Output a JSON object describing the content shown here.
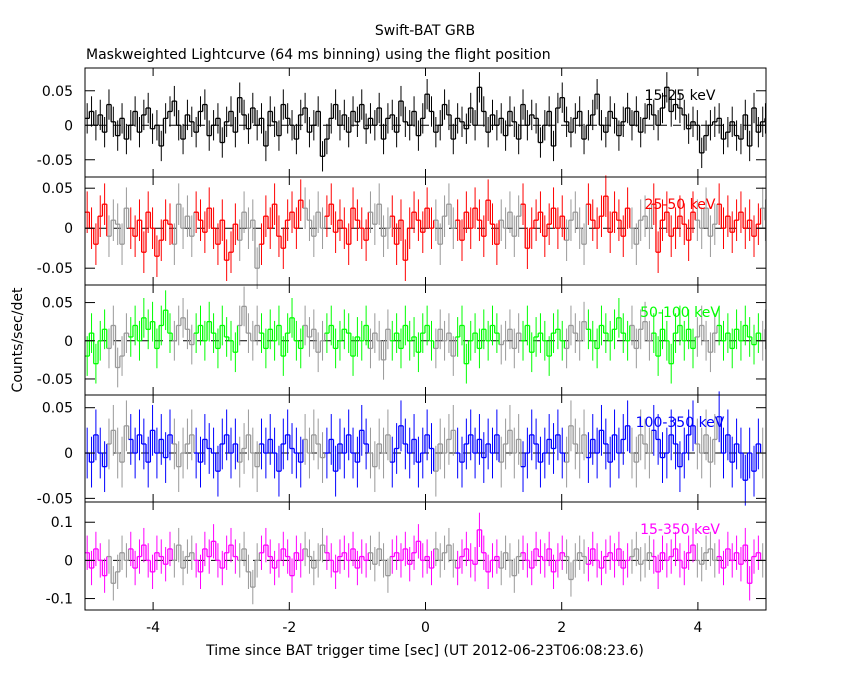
{
  "chart_data": {
    "type": "line",
    "title": "Swift-BAT GRB",
    "subtitle": "Maskweighted Lightcurve (64 ms binning) using the flight position",
    "xlabel": "Time since BAT trigger time [sec] (UT 2012-06-23T06:08:23.6)",
    "ylabel": "Counts/sec/det",
    "xlim": [
      -5,
      5
    ],
    "bin_width": 0.064,
    "x_ticks": [
      "-4",
      "-2",
      "0",
      "2",
      "4"
    ],
    "x_tick_values": [
      -4,
      -2,
      0,
      2,
      4
    ],
    "panels": [
      {
        "name": "15-25 keV",
        "color": "#000000",
        "ylim": [
          -0.075,
          0.083
        ],
        "yticks": [
          0.05,
          0,
          -0.05
        ],
        "ytick_labels": [
          "0.05",
          "0",
          "-0.05"
        ],
        "err": 0.022,
        "values": [
          0.01,
          0.02,
          0.0,
          0.015,
          -0.01,
          0.03,
          0.005,
          -0.015,
          0.01,
          -0.02,
          0.0,
          0.02,
          -0.01,
          0.015,
          0.025,
          -0.005,
          0.0,
          -0.03,
          0.01,
          0.02,
          0.035,
          0.0,
          -0.02,
          0.015,
          0.005,
          -0.01,
          0.02,
          0.03,
          -0.015,
          0.0,
          0.01,
          -0.025,
          0.005,
          0.02,
          -0.01,
          0.04,
          0.015,
          -0.005,
          0.025,
          0.0,
          0.01,
          -0.03,
          0.02,
          0.005,
          -0.015,
          0.03,
          0.01,
          0.0,
          -0.02,
          0.015,
          0.025,
          -0.01,
          0.0,
          0.02,
          -0.045,
          -0.02,
          0.01,
          0.03,
          0.0,
          0.015,
          -0.01,
          0.02,
          0.005,
          0.03,
          -0.005,
          0.01,
          0.0,
          0.025,
          -0.02,
          0.01,
          0.015,
          -0.01,
          0.035,
          0.005,
          0.0,
          0.02,
          -0.015,
          0.01,
          0.045,
          0.02,
          -0.01,
          0.0,
          0.03,
          0.015,
          -0.02,
          0.01,
          0.005,
          -0.005,
          0.025,
          0.0,
          0.055,
          0.02,
          -0.01,
          0.015,
          0.0,
          0.01,
          -0.015,
          0.02,
          0.005,
          -0.02,
          0.03,
          0.0,
          0.015,
          0.01,
          -0.025,
          0.0,
          0.02,
          -0.03,
          0.025,
          0.04,
          0.005,
          -0.01,
          0.01,
          0.02,
          -0.02,
          0.0,
          0.015,
          0.045,
          0.0,
          -0.01,
          0.02,
          0.01,
          -0.015,
          0.005,
          0.025,
          0.0,
          0.02,
          -0.01,
          0.01,
          0.03,
          0.015,
          0.0,
          0.025,
          0.055,
          0.02,
          0.03,
          0.025,
          0.015,
          -0.005,
          0.005,
          0.0,
          -0.04,
          -0.015,
          0.0,
          0.005,
          0.01,
          -0.02,
          -0.01,
          0.005,
          -0.015,
          -0.02,
          0.015,
          -0.03,
          0.025,
          -0.01,
          0.005,
          0.01,
          0.0
        ]
      },
      {
        "name": "25-50 keV",
        "color": "#ff0000",
        "ylim": [
          -0.071,
          0.064
        ],
        "yticks": [
          0.05,
          0,
          -0.05
        ],
        "ytick_labels": [
          "0.05",
          "0",
          "-0.05"
        ],
        "err": 0.026,
        "values": [
          0.02,
          0.0,
          -0.02,
          0.015,
          0.03,
          -0.01,
          0.01,
          0.005,
          -0.02,
          0.025,
          0.0,
          -0.01,
          0.01,
          -0.03,
          0.02,
          0.0,
          -0.035,
          -0.015,
          0.01,
          0.005,
          -0.02,
          0.03,
          0.0,
          0.015,
          -0.01,
          0.02,
          0.01,
          -0.005,
          0.025,
          0.0,
          -0.02,
          0.01,
          -0.04,
          -0.03,
          0.005,
          -0.015,
          0.02,
          0.0,
          0.01,
          -0.05,
          -0.02,
          0.015,
          0.0,
          0.03,
          -0.01,
          -0.025,
          0.01,
          0.02,
          0.0,
          0.035,
          0.025,
          0.01,
          -0.01,
          0.02,
          0.0,
          0.015,
          0.03,
          -0.005,
          0.01,
          0.0,
          -0.02,
          0.025,
          0.01,
          0.0,
          -0.015,
          0.02,
          0.005,
          0.03,
          -0.01,
          0.0,
          0.015,
          -0.02,
          0.01,
          -0.04,
          0.0,
          0.02,
          0.01,
          -0.005,
          0.025,
          0.0,
          0.01,
          -0.02,
          0.015,
          0.03,
          0.0,
          0.01,
          -0.015,
          0.02,
          0.0,
          0.025,
          0.01,
          -0.01,
          0.035,
          0.005,
          -0.02,
          0.01,
          0.0,
          0.02,
          -0.01,
          0.015,
          0.03,
          -0.025,
          0.0,
          0.01,
          0.02,
          -0.01,
          0.005,
          0.025,
          0.0,
          0.015,
          -0.015,
          0.01,
          0.02,
          0.0,
          -0.02,
          0.03,
          0.01,
          0.0,
          0.015,
          0.04,
          -0.005,
          0.02,
          0.01,
          -0.01,
          0.025,
          0.0,
          -0.02,
          0.01,
          0.015,
          0.0,
          0.03,
          -0.03,
          0.01,
          0.02,
          -0.01,
          0.0,
          0.015,
          0.005,
          -0.015,
          0.02,
          0.01,
          0.0,
          0.025,
          -0.01,
          0.005,
          0.03,
          0.0,
          0.015,
          -0.005,
          0.01,
          0.02,
          0.0,
          0.01,
          -0.01,
          0.005,
          0.025,
          0.01
        ]
      },
      {
        "name": "50-100 keV",
        "color": "#00ff00",
        "ylim": [
          -0.071,
          0.073
        ],
        "yticks": [
          0.05,
          0,
          -0.05
        ],
        "ytick_labels": [
          "0.05",
          "0",
          "-0.05"
        ],
        "err": 0.026,
        "values": [
          -0.02,
          0.01,
          -0.03,
          0.0,
          0.015,
          -0.01,
          0.02,
          -0.035,
          -0.02,
          0.01,
          0.005,
          0.02,
          0.0,
          0.03,
          0.015,
          0.025,
          -0.01,
          0.02,
          0.04,
          0.01,
          0.0,
          0.02,
          0.03,
          0.015,
          -0.005,
          0.01,
          0.02,
          0.0,
          0.025,
          0.01,
          -0.01,
          0.02,
          0.005,
          0.0,
          -0.015,
          0.02,
          0.045,
          0.01,
          0.0,
          0.02,
          0.01,
          -0.01,
          0.015,
          0.0,
          0.02,
          -0.02,
          0.01,
          0.03,
          0.0,
          -0.01,
          0.02,
          0.005,
          0.015,
          -0.015,
          0.0,
          0.01,
          0.02,
          -0.01,
          0.0,
          0.015,
          0.01,
          -0.02,
          0.005,
          0.0,
          0.02,
          -0.01,
          0.01,
          0.0,
          -0.025,
          0.015,
          0.0,
          0.01,
          -0.01,
          0.02,
          0.0,
          0.005,
          -0.015,
          0.01,
          0.02,
          0.0,
          -0.01,
          0.015,
          0.0,
          0.01,
          -0.02,
          0.005,
          0.02,
          -0.03,
          0.0,
          0.01,
          -0.01,
          0.015,
          0.0,
          0.02,
          0.01,
          -0.005,
          0.0,
          0.015,
          -0.01,
          0.01,
          0.0,
          0.02,
          -0.015,
          0.005,
          0.01,
          0.0,
          -0.02,
          0.01,
          0.015,
          0.0,
          -0.01,
          0.02,
          0.01,
          0.0,
          0.025,
          0.015,
          0.0,
          -0.01,
          0.02,
          0.01,
          0.0,
          0.015,
          0.03,
          0.01,
          0.0,
          0.02,
          -0.01,
          0.015,
          0.025,
          0.0,
          0.01,
          -0.02,
          0.015,
          0.0,
          -0.03,
          0.01,
          0.02,
          0.0,
          0.015,
          -0.01,
          0.005,
          0.02,
          0.0,
          -0.015,
          0.01,
          0.02,
          0.0,
          0.01,
          -0.01,
          0.015,
          0.0,
          0.02,
          0.005,
          -0.005,
          0.01,
          0.0,
          0.015
        ]
      },
      {
        "name": "100-350 keV",
        "color": "#0000ff",
        "ylim": [
          -0.054,
          0.064
        ],
        "yticks": [
          0.05,
          0,
          -0.05
        ],
        "ytick_labels": [
          "0.05",
          "0",
          "-0.05"
        ],
        "err": 0.028,
        "values": [
          0.0,
          -0.01,
          0.02,
          0.0,
          -0.015,
          0.01,
          0.025,
          0.0,
          -0.01,
          0.03,
          0.015,
          0.0,
          0.02,
          0.01,
          -0.01,
          0.025,
          0.0,
          0.015,
          -0.005,
          0.02,
          0.01,
          -0.015,
          0.0,
          0.01,
          0.02,
          0.0,
          -0.01,
          0.015,
          0.005,
          0.0,
          -0.02,
          0.01,
          0.02,
          0.0,
          0.01,
          -0.01,
          0.005,
          0.02,
          0.0,
          -0.015,
          0.01,
          0.0,
          0.015,
          0.0,
          -0.02,
          0.01,
          0.02,
          0.005,
          0.0,
          -0.01,
          0.015,
          0.0,
          0.02,
          0.01,
          -0.005,
          0.0,
          0.015,
          -0.02,
          0.01,
          0.0,
          0.02,
          0.0,
          -0.01,
          0.025,
          0.01,
          0.0,
          -0.015,
          0.01,
          0.0,
          0.02,
          -0.01,
          0.005,
          0.03,
          0.01,
          0.0,
          0.015,
          -0.01,
          0.0,
          0.02,
          0.005,
          -0.02,
          0.01,
          0.0,
          0.015,
          0.025,
          0.0,
          -0.01,
          0.01,
          0.02,
          0.0,
          0.015,
          -0.005,
          0.01,
          0.0,
          0.02,
          -0.01,
          0.01,
          0.025,
          0.0,
          0.015,
          -0.015,
          0.0,
          0.02,
          0.01,
          -0.01,
          0.0,
          0.015,
          0.005,
          0.02,
          0.0,
          -0.01,
          0.03,
          0.01,
          0.0,
          0.02,
          -0.005,
          0.015,
          0.0,
          0.025,
          0.01,
          -0.01,
          0.02,
          0.0,
          0.015,
          0.03,
          0.0,
          -0.01,
          0.02,
          0.01,
          0.0,
          0.025,
          0.015,
          -0.005,
          0.0,
          0.02,
          0.01,
          -0.015,
          0.0,
          0.02,
          0.03,
          0.01,
          0.0,
          0.02,
          -0.01,
          0.015,
          0.04,
          0.0,
          0.02,
          -0.01,
          0.01,
          0.0,
          -0.03,
          0.0,
          -0.02,
          0.01,
          0.0
        ]
      },
      {
        "name": "15-350 keV",
        "color": "#ff00ff",
        "ylim": [
          -0.13,
          0.153
        ],
        "yticks": [
          0.1,
          0,
          -0.1
        ],
        "ytick_labels": [
          "0.1",
          "0",
          "-0.1"
        ],
        "err": 0.045,
        "values": [
          0.02,
          -0.02,
          0.03,
          0.0,
          -0.04,
          0.01,
          -0.06,
          -0.03,
          0.02,
          0.0,
          0.03,
          -0.02,
          0.01,
          0.04,
          0.0,
          -0.03,
          0.02,
          0.01,
          -0.01,
          0.03,
          0.0,
          0.04,
          -0.02,
          0.01,
          0.02,
          0.0,
          -0.03,
          0.03,
          0.01,
          0.05,
          0.0,
          -0.02,
          0.02,
          0.04,
          0.01,
          0.0,
          0.03,
          -0.03,
          -0.07,
          0.0,
          0.02,
          0.04,
          0.01,
          -0.02,
          0.0,
          0.03,
          0.01,
          -0.04,
          0.02,
          0.0,
          0.03,
          0.01,
          -0.02,
          0.0,
          0.04,
          0.02,
          0.0,
          -0.03,
          0.01,
          0.02,
          0.0,
          0.03,
          -0.02,
          0.01,
          0.0,
          0.02,
          -0.01,
          0.03,
          0.0,
          -0.04,
          0.01,
          0.02,
          0.0,
          0.03,
          -0.01,
          0.02,
          0.05,
          0.0,
          0.01,
          -0.02,
          0.03,
          0.0,
          0.02,
          0.04,
          0.0,
          -0.02,
          0.01,
          0.03,
          0.0,
          -0.01,
          0.08,
          0.02,
          -0.03,
          0.0,
          0.01,
          -0.02,
          0.02,
          0.0,
          -0.04,
          0.01,
          0.02,
          0.0,
          -0.02,
          0.03,
          0.01,
          0.0,
          0.03,
          -0.03,
          0.0,
          0.02,
          0.01,
          -0.05,
          0.0,
          0.02,
          0.01,
          -0.01,
          0.03,
          0.0,
          -0.02,
          0.01,
          0.02,
          0.0,
          0.03,
          -0.02,
          0.0,
          0.01,
          0.03,
          -0.01,
          0.0,
          0.02,
          0.01,
          -0.03,
          0.02,
          0.0,
          0.01,
          0.03,
          0.0,
          -0.02,
          0.02,
          0.04,
          0.0,
          -0.01,
          0.02,
          0.03,
          0.0,
          0.01,
          -0.02,
          0.03,
          0.0,
          0.02,
          -0.01,
          0.04,
          -0.06,
          0.01,
          0.02,
          0.0
        ]
      }
    ]
  }
}
